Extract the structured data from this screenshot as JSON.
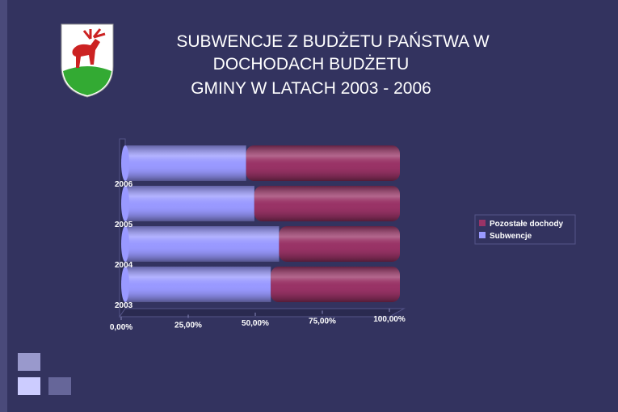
{
  "chart_data": {
    "type": "stacked-bar-3d",
    "title": [
      "SUBWENCJE Z BUDŻETU PAŃSTWA W",
      "DOCHODACH BUDŻETU",
      "GMINY W LATACH 2003 - 2006"
    ],
    "categories": [
      "2003",
      "2004",
      "2005",
      "2006"
    ],
    "series": [
      {
        "name": "Subwencje",
        "color": "#9999ff",
        "values": [
          53,
          56,
          47,
          44
        ]
      },
      {
        "name": "Pozostałe dochody",
        "color": "#993366",
        "values": [
          47,
          44,
          53,
          56
        ]
      }
    ],
    "xlim": [
      0,
      100
    ],
    "xticks": [
      {
        "value": 0,
        "label": "0,00%"
      },
      {
        "value": 25,
        "label": "25,00%"
      },
      {
        "value": 50,
        "label": "50,00%"
      },
      {
        "value": 75,
        "label": "75,00%"
      },
      {
        "value": 100,
        "label": "100,00%"
      }
    ],
    "legend": "right"
  }
}
